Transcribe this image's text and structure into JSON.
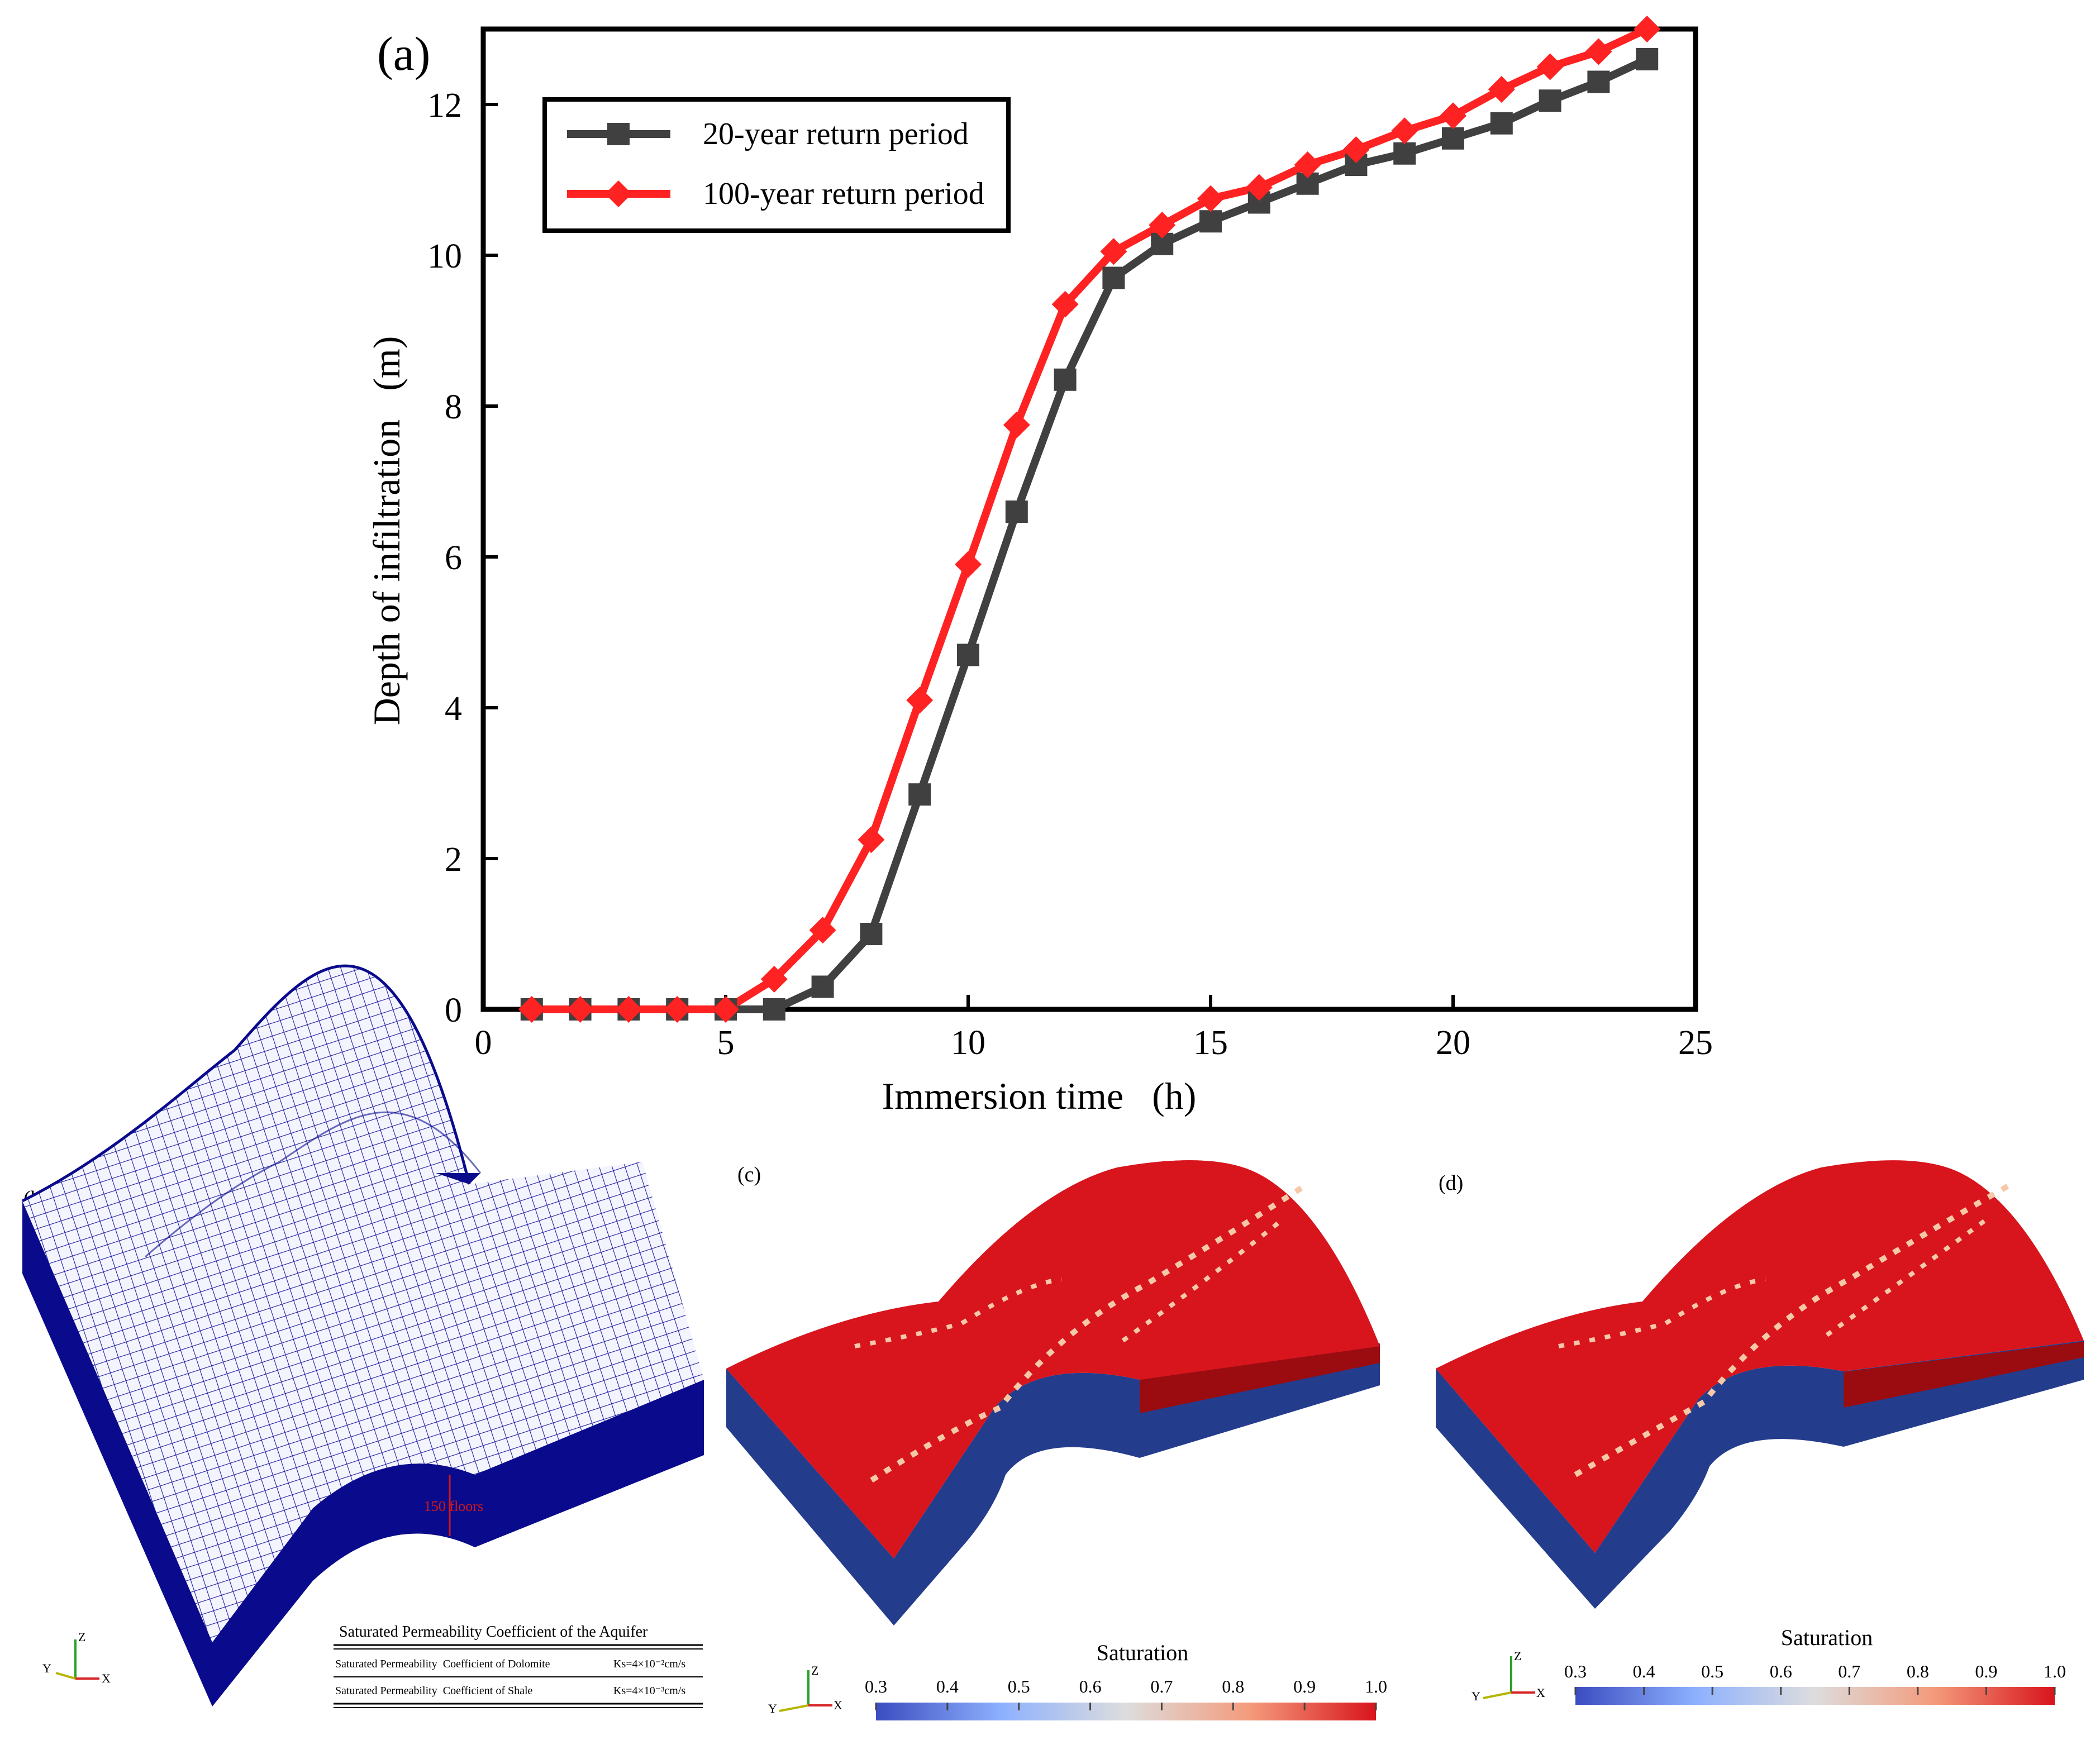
{
  "chart_data": [
    {
      "type": "line",
      "panel_label": "(a)",
      "xlabel": "Immersion time   (h)",
      "ylabel": "Depth of infiltration   (m)",
      "xlim": [
        0,
        25
      ],
      "ylim": [
        0,
        13
      ],
      "xticks": [
        "0",
        "5",
        "10",
        "15",
        "20",
        "25"
      ],
      "yticks": [
        "0",
        "2",
        "4",
        "6",
        "8",
        "10",
        "12"
      ],
      "grid": false,
      "legend_position": "top-left",
      "series": [
        {
          "name": "20-year return period",
          "color": "#404040",
          "marker": "square",
          "x": [
            1,
            2,
            3,
            4,
            5,
            6,
            7,
            8,
            9,
            10,
            11,
            12,
            13,
            14,
            15,
            16,
            17,
            18,
            19,
            20,
            21,
            22,
            23,
            24
          ],
          "y": [
            0,
            0,
            0,
            0,
            0,
            0,
            0.3,
            1.0,
            2.85,
            4.7,
            6.6,
            8.35,
            9.7,
            10.15,
            10.45,
            10.7,
            10.95,
            11.2,
            11.35,
            11.55,
            11.75,
            12.05,
            12.3,
            12.6
          ]
        },
        {
          "name": "100-year return period",
          "color": "#ff2222",
          "marker": "diamond",
          "x": [
            1,
            2,
            3,
            4,
            5,
            6,
            7,
            8,
            9,
            10,
            11,
            12,
            13,
            14,
            15,
            16,
            17,
            18,
            19,
            20,
            21,
            22,
            23,
            24
          ],
          "y": [
            0,
            0,
            0,
            0,
            0,
            0.4,
            1.05,
            2.25,
            4.1,
            5.9,
            7.75,
            9.35,
            10.05,
            10.4,
            10.75,
            10.9,
            11.2,
            11.4,
            11.65,
            11.85,
            12.2,
            12.5,
            12.7,
            13.0
          ]
        }
      ]
    },
    {
      "type": "colorbar",
      "panel_label": "(c)",
      "title": "Saturation",
      "ticks": [
        "0.3",
        "0.4",
        "0.5",
        "0.6",
        "0.7",
        "0.8",
        "0.9",
        "1.0"
      ],
      "range": [
        0.3,
        1.0
      ]
    },
    {
      "type": "colorbar",
      "panel_label": "(d)",
      "title": "Saturation",
      "ticks": [
        "0.3",
        "0.4",
        "0.5",
        "0.6",
        "0.7",
        "0.8",
        "0.9",
        "1.0"
      ],
      "range": [
        0.3,
        1.0
      ]
    }
  ],
  "panel_b": {
    "label": "(b)",
    "annotation": "150 floors",
    "table_title": "Saturated Permeability Coefficient of the Aquifer",
    "rows": [
      {
        "name": "Saturated Permeability  Coefficient of Dolomite",
        "value": "Ks=4×10⁻²cm/s"
      },
      {
        "name": "Saturated Permeability  Coefficient of Shale",
        "value": "Ks=4×10⁻³cm/s"
      }
    ]
  },
  "axes_triad": {
    "z": "Z",
    "y": "Y",
    "x": "X"
  },
  "colors": {
    "mesh_blue": "#0a0a8c",
    "sat_red": "#d8141c",
    "dark_red": "#9a0c10",
    "low_blue": "#243c8c"
  }
}
